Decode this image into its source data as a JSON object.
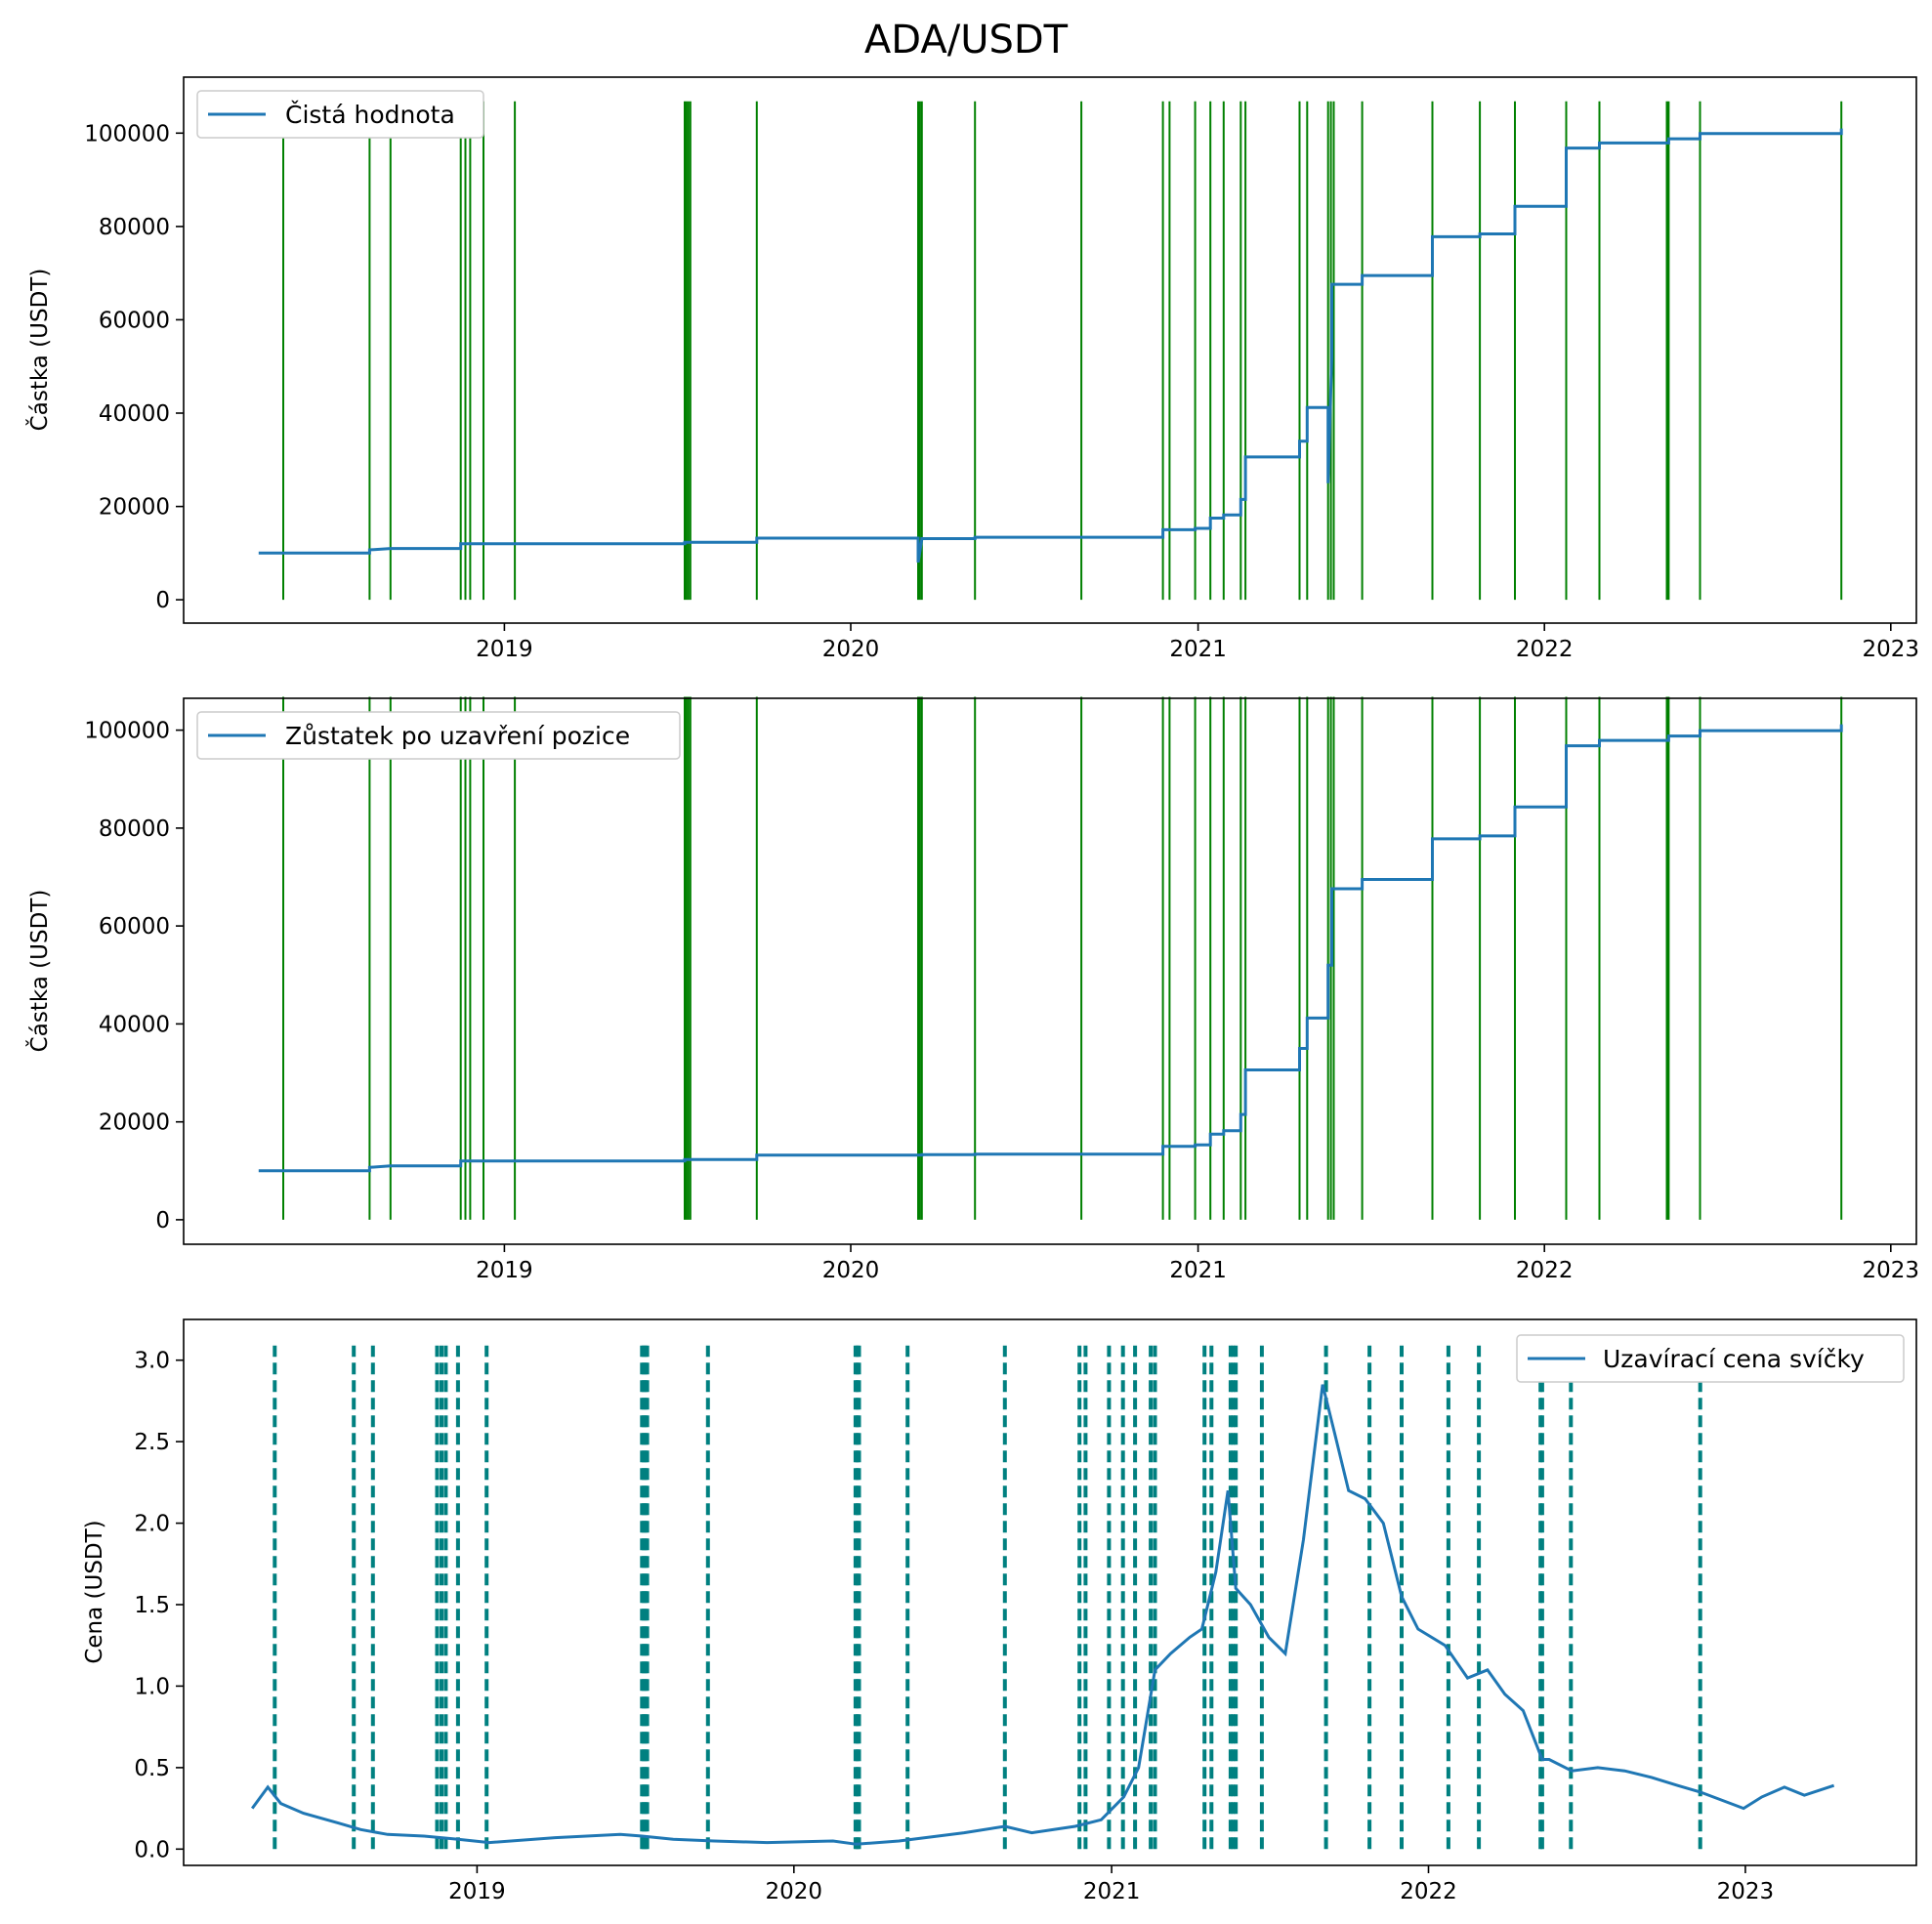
{
  "title": "ADA/USDT",
  "colors": {
    "series": "#1f77b4",
    "trade_solid": "#008000",
    "trade_dashed": "#008080"
  },
  "chart_data": [
    {
      "type": "line",
      "legend": "Čistá hodnota",
      "legend_position": "top-left",
      "ylabel": "Částka (USDT)",
      "ylim": [
        -5000,
        112000
      ],
      "yticks": [
        0,
        20000,
        40000,
        60000,
        80000,
        100000
      ],
      "xlim": [
        "2018-01-28",
        "2023-01-28"
      ],
      "xticks": [
        "2019",
        "2020",
        "2021",
        "2022",
        "2023"
      ],
      "trade_markers": [
        "2018-05-13",
        "2018-08-12",
        "2018-09-03",
        "2018-11-16",
        "2018-11-21",
        "2018-11-26",
        "2018-12-10",
        "2019-01-12",
        "2019-07-10",
        "2019-07-12",
        "2019-07-14",
        "2019-07-16",
        "2019-09-24",
        "2020-03-12",
        "2020-03-14",
        "2020-03-16",
        "2020-05-11",
        "2020-08-31",
        "2020-11-25",
        "2020-12-02",
        "2020-12-29",
        "2021-01-14",
        "2021-01-28",
        "2021-02-15",
        "2021-02-20",
        "2021-04-18",
        "2021-04-26",
        "2021-05-18",
        "2021-05-21",
        "2021-05-24",
        "2021-06-23",
        "2021-09-05",
        "2021-10-25",
        "2021-12-01",
        "2022-01-24",
        "2022-02-28",
        "2022-05-10",
        "2022-05-12",
        "2022-06-14",
        "2022-11-10"
      ],
      "x": [
        "2018-04-17",
        "2018-08-12",
        "2018-08-12",
        "2018-09-03",
        "2018-11-16",
        "2018-11-16",
        "2018-12-10",
        "2019-07-10",
        "2019-07-10",
        "2019-09-24",
        "2019-09-24",
        "2020-03-12",
        "2020-03-12",
        "2020-03-16",
        "2020-03-16",
        "2020-05-11",
        "2020-05-11",
        "2020-11-25",
        "2020-11-25",
        "2020-12-29",
        "2020-12-29",
        "2021-01-14",
        "2021-01-14",
        "2021-01-28",
        "2021-01-28",
        "2021-02-15",
        "2021-02-15",
        "2021-02-20",
        "2021-02-20",
        "2021-04-18",
        "2021-04-18",
        "2021-04-26",
        "2021-04-26",
        "2021-05-18",
        "2021-05-18",
        "2021-05-22",
        "2021-05-22",
        "2021-06-23",
        "2021-06-23",
        "2021-09-05",
        "2021-09-05",
        "2021-10-25",
        "2021-10-25",
        "2021-12-01",
        "2021-12-01",
        "2022-01-24",
        "2022-01-24",
        "2022-02-28",
        "2022-02-28",
        "2022-05-12",
        "2022-05-12",
        "2022-06-14",
        "2022-06-14",
        "2022-11-10",
        "2022-11-10"
      ],
      "y": [
        10000,
        10000,
        10700,
        11000,
        11000,
        12000,
        12000,
        12000,
        12300,
        12300,
        13200,
        13200,
        8000,
        13000,
        13100,
        13100,
        13400,
        13400,
        15000,
        15000,
        15300,
        15300,
        17500,
        17500,
        18200,
        18200,
        21500,
        21500,
        30600,
        30600,
        34000,
        34000,
        41200,
        41200,
        25000,
        52000,
        67600,
        67600,
        69500,
        69500,
        77800,
        77800,
        78400,
        78400,
        84300,
        84300,
        96800,
        96800,
        97900,
        97900,
        98800,
        98800,
        99900,
        99900,
        101000
      ]
    },
    {
      "type": "line",
      "legend": "Zůstatek po uzavření pozice",
      "legend_position": "top-left",
      "ylabel": "Částka (USDT)",
      "ylim": [
        -5000,
        106500
      ],
      "yticks": [
        0,
        20000,
        40000,
        60000,
        80000,
        100000
      ],
      "xlim": [
        "2018-01-28",
        "2023-01-28"
      ],
      "xticks": [
        "2019",
        "2020",
        "2021",
        "2022",
        "2023"
      ],
      "trade_markers": [
        "2018-05-13",
        "2018-08-12",
        "2018-09-03",
        "2018-11-16",
        "2018-11-21",
        "2018-11-26",
        "2018-12-10",
        "2019-01-12",
        "2019-07-10",
        "2019-07-12",
        "2019-07-14",
        "2019-07-16",
        "2019-09-24",
        "2020-03-12",
        "2020-03-14",
        "2020-03-16",
        "2020-05-11",
        "2020-08-31",
        "2020-11-25",
        "2020-12-02",
        "2020-12-29",
        "2021-01-14",
        "2021-01-28",
        "2021-02-15",
        "2021-02-20",
        "2021-04-18",
        "2021-04-26",
        "2021-05-18",
        "2021-05-21",
        "2021-05-24",
        "2021-06-23",
        "2021-09-05",
        "2021-10-25",
        "2021-12-01",
        "2022-01-24",
        "2022-02-28",
        "2022-05-10",
        "2022-05-12",
        "2022-06-14",
        "2022-11-10"
      ],
      "x": [
        "2018-04-17",
        "2018-08-12",
        "2018-08-12",
        "2018-09-03",
        "2018-11-16",
        "2018-11-16",
        "2018-12-10",
        "2019-07-10",
        "2019-07-10",
        "2019-09-24",
        "2019-09-24",
        "2020-03-16",
        "2020-03-16",
        "2020-05-11",
        "2020-05-11",
        "2020-11-25",
        "2020-11-25",
        "2020-12-29",
        "2020-12-29",
        "2021-01-14",
        "2021-01-14",
        "2021-01-28",
        "2021-01-28",
        "2021-02-15",
        "2021-02-15",
        "2021-02-20",
        "2021-02-20",
        "2021-04-18",
        "2021-04-18",
        "2021-04-26",
        "2021-04-26",
        "2021-05-18",
        "2021-05-18",
        "2021-05-22",
        "2021-05-22",
        "2021-06-23",
        "2021-06-23",
        "2021-09-05",
        "2021-09-05",
        "2021-10-25",
        "2021-10-25",
        "2021-12-01",
        "2021-12-01",
        "2022-01-24",
        "2022-01-24",
        "2022-02-28",
        "2022-02-28",
        "2022-05-12",
        "2022-05-12",
        "2022-06-14",
        "2022-06-14",
        "2022-11-10",
        "2022-11-10"
      ],
      "y": [
        10000,
        10000,
        10700,
        11000,
        11000,
        12000,
        12000,
        12000,
        12300,
        12300,
        13200,
        13200,
        13300,
        13300,
        13400,
        13400,
        15000,
        15000,
        15300,
        15300,
        17500,
        17500,
        18200,
        18200,
        21500,
        21500,
        30600,
        30600,
        35000,
        35000,
        41200,
        41200,
        52000,
        52000,
        67600,
        67600,
        69500,
        69500,
        77800,
        77800,
        78400,
        78400,
        84300,
        84300,
        96800,
        96800,
        97900,
        97900,
        98800,
        98800,
        99900,
        99900,
        101200
      ]
    },
    {
      "type": "line",
      "legend": "Uzavírací cena svíčky",
      "legend_position": "top-right",
      "ylabel": "Cena (USDT)",
      "ylim": [
        -0.1,
        3.25
      ],
      "yticks": [
        0.0,
        0.5,
        1.0,
        1.5,
        2.0,
        2.5,
        3.0
      ],
      "ytick_labels": [
        "0.0",
        "0.5",
        "1.0",
        "1.5",
        "2.0",
        "2.5",
        "3.0"
      ],
      "xlim": [
        "2018-01-28",
        "2023-07-17"
      ],
      "xticks": [
        "2019",
        "2020",
        "2021",
        "2022",
        "2023"
      ],
      "trade_markers": [
        "2018-05-13",
        "2018-08-12",
        "2018-09-03",
        "2018-11-16",
        "2018-11-21",
        "2018-11-26",
        "2018-12-10",
        "2019-01-12",
        "2019-07-10",
        "2019-07-12",
        "2019-07-14",
        "2019-07-16",
        "2019-09-24",
        "2020-03-12",
        "2020-03-14",
        "2020-03-16",
        "2020-05-11",
        "2020-08-31",
        "2020-11-25",
        "2020-12-02",
        "2020-12-29",
        "2021-01-14",
        "2021-01-28",
        "2021-02-15",
        "2021-02-20",
        "2021-04-18",
        "2021-04-26",
        "2021-05-18",
        "2021-05-21",
        "2021-05-24",
        "2021-06-23",
        "2021-09-05",
        "2021-10-25",
        "2021-12-01",
        "2022-01-24",
        "2022-02-28",
        "2022-05-10",
        "2022-05-12",
        "2022-06-14",
        "2022-11-10"
      ],
      "x": [
        "2018-04-17",
        "2018-05-05",
        "2018-05-20",
        "2018-06-15",
        "2018-07-25",
        "2018-08-20",
        "2018-09-20",
        "2018-11-01",
        "2018-12-10",
        "2019-01-15",
        "2019-04-01",
        "2019-06-15",
        "2019-07-10",
        "2019-08-15",
        "2019-10-01",
        "2019-12-01",
        "2020-02-15",
        "2020-03-13",
        "2020-05-01",
        "2020-07-15",
        "2020-08-31",
        "2020-10-01",
        "2020-11-20",
        "2020-12-20",
        "2021-01-15",
        "2021-02-01",
        "2021-02-20",
        "2021-03-10",
        "2021-04-01",
        "2021-04-15",
        "2021-05-01",
        "2021-05-15",
        "2021-05-24",
        "2021-06-10",
        "2021-07-01",
        "2021-07-20",
        "2021-08-10",
        "2021-09-01",
        "2021-09-15",
        "2021-10-01",
        "2021-10-20",
        "2021-11-10",
        "2021-12-01",
        "2021-12-20",
        "2022-01-20",
        "2022-02-15",
        "2022-03-10",
        "2022-03-30",
        "2022-04-20",
        "2022-05-12",
        "2022-05-20",
        "2022-06-15",
        "2022-07-15",
        "2022-08-15",
        "2022-09-15",
        "2022-10-15",
        "2022-11-10",
        "2022-12-30",
        "2023-01-20",
        "2023-02-15",
        "2023-03-10",
        "2023-04-13"
      ],
      "y": [
        0.25,
        0.38,
        0.28,
        0.22,
        0.16,
        0.12,
        0.09,
        0.08,
        0.06,
        0.04,
        0.07,
        0.09,
        0.08,
        0.06,
        0.05,
        0.04,
        0.05,
        0.03,
        0.05,
        0.1,
        0.14,
        0.1,
        0.14,
        0.18,
        0.32,
        0.5,
        1.1,
        1.2,
        1.3,
        1.35,
        1.7,
        2.2,
        1.6,
        1.5,
        1.3,
        1.2,
        1.9,
        2.85,
        2.55,
        2.2,
        2.15,
        2.0,
        1.55,
        1.35,
        1.25,
        1.05,
        1.1,
        0.95,
        0.85,
        0.55,
        0.55,
        0.48,
        0.5,
        0.48,
        0.44,
        0.39,
        0.35,
        0.25,
        0.32,
        0.38,
        0.33,
        0.39
      ]
    }
  ]
}
